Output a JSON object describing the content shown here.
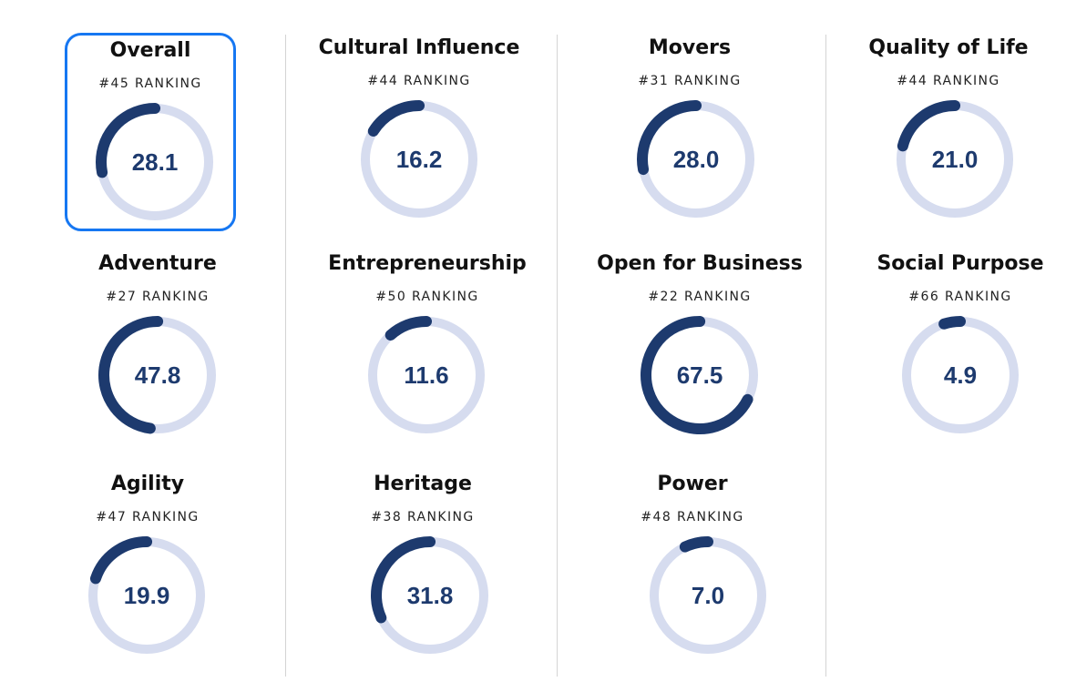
{
  "ranking_suffix": "RANKING",
  "colors": {
    "arc": "#1d3a6e",
    "track": "#d6dcef",
    "value_text": "#1d3a6e",
    "selection_border": "#1677f2"
  },
  "cards": [
    {
      "title": "Overall",
      "rank": "#45 RANKING",
      "score": "28.1",
      "score_value": 28.1,
      "selected": true
    },
    {
      "title": "Cultural Influence",
      "rank": "#44 RANKING",
      "score": "16.2",
      "score_value": 16.2,
      "selected": false
    },
    {
      "title": "Movers",
      "rank": "#31 RANKING",
      "score": "28.0",
      "score_value": 28.0,
      "selected": false
    },
    {
      "title": "Quality of Life",
      "rank": "#44 RANKING",
      "score": "21.0",
      "score_value": 21.0,
      "selected": false
    },
    {
      "title": "Adventure",
      "rank": "#27 RANKING",
      "score": "47.8",
      "score_value": 47.8,
      "selected": false
    },
    {
      "title": "Entrepreneurship",
      "rank": "#50 RANKING",
      "score": "11.6",
      "score_value": 11.6,
      "selected": false
    },
    {
      "title": "Open for Business",
      "rank": "#22 RANKING",
      "score": "67.5",
      "score_value": 67.5,
      "selected": false
    },
    {
      "title": "Social Purpose",
      "rank": "#66 RANKING",
      "score": "4.9",
      "score_value": 4.9,
      "selected": false
    },
    {
      "title": "Agility",
      "rank": "#47 RANKING",
      "score": "19.9",
      "score_value": 19.9,
      "selected": false
    },
    {
      "title": "Heritage",
      "rank": "#38 RANKING",
      "score": "31.8",
      "score_value": 31.8,
      "selected": false
    },
    {
      "title": "Power",
      "rank": "#48 RANKING",
      "score": "7.0",
      "score_value": 7.0,
      "selected": false
    }
  ]
}
